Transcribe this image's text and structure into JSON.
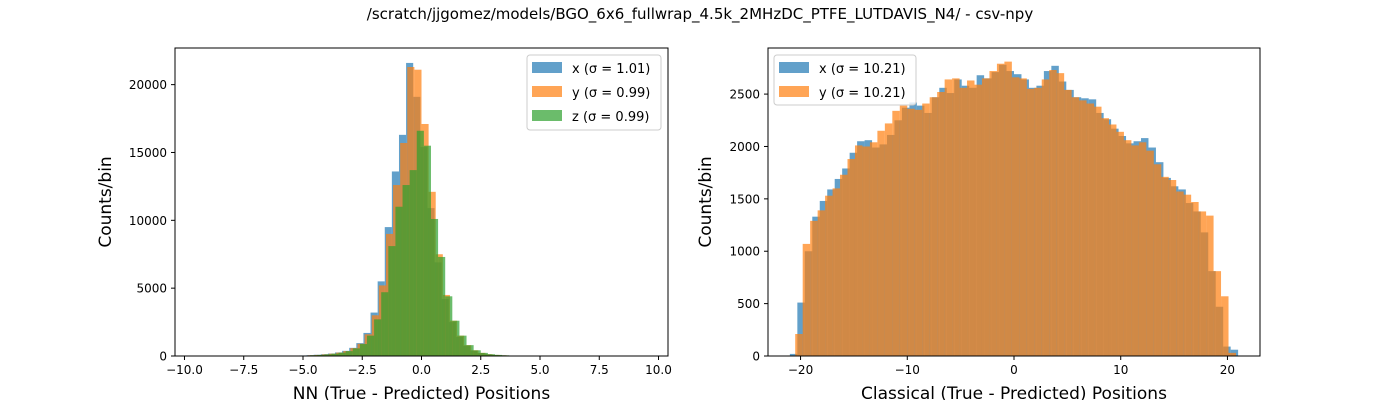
{
  "figure": {
    "suptitle": "/scratch/jjgomez/models/BGO_6x6_fullwrap_4.5k_2MHzDC_PTFE_LUTDAVIS_N4/ - csv-npy"
  },
  "colors": {
    "x": "#1f77b4",
    "y": "#ff7f0e",
    "z": "#2ca02c"
  },
  "chart_data": [
    {
      "type": "bar",
      "histogram": true,
      "xlabel": "NN (True - Predicted) Positions",
      "ylabel": "Counts/bin",
      "xlim": [
        -10.4,
        10.4
      ],
      "ylim": [
        0,
        22700
      ],
      "xticks": [
        -10.0,
        -7.5,
        -5.0,
        -2.5,
        0.0,
        2.5,
        5.0,
        7.5,
        10.0
      ],
      "xtick_labels": [
        "−10.0",
        "−7.5",
        "−5.0",
        "−2.5",
        "0.0",
        "2.5",
        "5.0",
        "7.5",
        "10.0"
      ],
      "yticks": [
        0,
        5000,
        10000,
        15000,
        20000
      ],
      "ytick_labels": [
        "0",
        "5000",
        "10000",
        "15000",
        "20000"
      ],
      "legend_position": "upper right",
      "alpha": 0.7,
      "series": [
        {
          "key": "x",
          "name": "x (σ = 1.01)",
          "bin_edges": [
            -5.75,
            -5.45,
            -5.15,
            -4.85,
            -4.55,
            -4.25,
            -3.95,
            -3.65,
            -3.35,
            -3.05,
            -2.75,
            -2.45,
            -2.15,
            -1.85,
            -1.55,
            -1.25,
            -0.95,
            -0.65,
            -0.35,
            -0.05,
            0.25,
            0.55,
            0.85,
            1.15,
            1.45,
            1.75,
            2.05,
            2.35,
            2.65,
            2.95,
            3.25,
            3.55,
            3.85,
            4.15,
            4.45,
            4.75,
            5.05,
            5.35
          ],
          "values": [
            20,
            30,
            40,
            60,
            90,
            130,
            180,
            260,
            380,
            600,
            950,
            1700,
            3200,
            5500,
            9500,
            13600,
            16300,
            21600,
            19100,
            15400,
            10900,
            6900,
            4200,
            2500,
            1400,
            750,
            400,
            220,
            130,
            80,
            50,
            30,
            20,
            15,
            10,
            5,
            3
          ]
        },
        {
          "key": "y",
          "name": "y (σ = 0.99)",
          "bin_edges": [
            -5.7,
            -5.4,
            -5.1,
            -4.8,
            -4.5,
            -4.2,
            -3.9,
            -3.6,
            -3.3,
            -3.0,
            -2.7,
            -2.4,
            -2.1,
            -1.8,
            -1.5,
            -1.2,
            -0.9,
            -0.6,
            -0.3,
            0.0,
            0.3,
            0.6,
            0.9,
            1.2,
            1.5,
            1.8,
            2.1,
            2.4,
            2.7,
            3.0,
            3.3,
            3.6,
            3.9,
            4.2,
            4.5,
            4.8,
            5.1,
            5.4
          ],
          "values": [
            15,
            25,
            35,
            55,
            80,
            120,
            170,
            250,
            360,
            580,
            900,
            1600,
            3000,
            5200,
            9000,
            12600,
            15700,
            21300,
            21100,
            17100,
            12100,
            7500,
            4500,
            2600,
            1500,
            800,
            420,
            230,
            130,
            80,
            50,
            30,
            20,
            15,
            10,
            5,
            3
          ]
        },
        {
          "key": "z",
          "name": "z (σ = 0.99)",
          "bin_edges": [
            -5.6,
            -5.3,
            -5.0,
            -4.7,
            -4.4,
            -4.1,
            -3.8,
            -3.5,
            -3.2,
            -2.9,
            -2.6,
            -2.3,
            -2.0,
            -1.7,
            -1.4,
            -1.1,
            -0.8,
            -0.5,
            -0.2,
            0.1,
            0.4,
            0.7,
            1.0,
            1.3,
            1.6,
            1.9,
            2.2,
            2.5,
            2.8,
            3.1,
            3.4,
            3.7,
            4.0,
            4.3,
            4.6,
            4.9,
            5.2,
            5.5
          ],
          "values": [
            15,
            25,
            35,
            55,
            80,
            120,
            170,
            250,
            360,
            560,
            880,
            1500,
            2700,
            4700,
            8100,
            11000,
            12600,
            13700,
            16600,
            15500,
            10100,
            7300,
            4400,
            2600,
            1500,
            800,
            420,
            230,
            130,
            80,
            50,
            30,
            20,
            15,
            10,
            5,
            3
          ]
        }
      ]
    },
    {
      "type": "bar",
      "histogram": true,
      "xlabel": "Classical (True - Predicted) Positions",
      "ylabel": "Counts/bin",
      "xlim": [
        -23.05,
        23.05
      ],
      "ylim": [
        0,
        2940
      ],
      "xticks": [
        -20,
        -10,
        0,
        10,
        20
      ],
      "xtick_labels": [
        "−20",
        "−10",
        "0",
        "10",
        "20"
      ],
      "yticks": [
        0,
        500,
        1000,
        1500,
        2000,
        2500
      ],
      "ytick_labels": [
        "0",
        "500",
        "1000",
        "1500",
        "2000",
        "2500"
      ],
      "legend_position": "upper left",
      "alpha": 0.7,
      "series": [
        {
          "key": "x",
          "name": "x (σ = 10.21)",
          "bin_edges": [
            -21.0,
            -20.3,
            -19.6,
            -18.9,
            -18.2,
            -17.5,
            -16.8,
            -16.1,
            -15.4,
            -14.7,
            -14.0,
            -13.3,
            -12.6,
            -11.9,
            -11.2,
            -10.5,
            -9.8,
            -9.1,
            -8.4,
            -7.7,
            -7.0,
            -6.3,
            -5.6,
            -4.9,
            -4.2,
            -3.5,
            -2.8,
            -2.1,
            -1.4,
            -0.7,
            0.0,
            0.7,
            1.4,
            2.1,
            2.8,
            3.5,
            4.2,
            4.9,
            5.6,
            6.3,
            7.0,
            7.7,
            8.4,
            9.1,
            9.8,
            10.5,
            11.2,
            11.9,
            12.6,
            13.3,
            14.0,
            14.7,
            15.4,
            16.1,
            16.8,
            17.5,
            18.2,
            18.9,
            19.6,
            20.3,
            21.0
          ],
          "values": [
            20,
            510,
            1000,
            1330,
            1480,
            1590,
            1690,
            1790,
            1940,
            2050,
            2060,
            1990,
            2020,
            2110,
            2250,
            2370,
            2420,
            2390,
            2320,
            2470,
            2560,
            2510,
            2640,
            2580,
            2560,
            2680,
            2650,
            2710,
            2780,
            2720,
            2690,
            2640,
            2560,
            2580,
            2720,
            2770,
            2620,
            2540,
            2470,
            2460,
            2450,
            2320,
            2260,
            2170,
            2100,
            2030,
            2050,
            2080,
            1990,
            1850,
            1700,
            1620,
            1590,
            1460,
            1380,
            1180,
            810,
            470,
            90,
            60
          ]
        },
        {
          "key": "y",
          "name": "y (σ = 10.21)",
          "bin_edges": [
            -21.2,
            -20.5,
            -19.8,
            -19.1,
            -18.4,
            -17.7,
            -17.0,
            -16.3,
            -15.6,
            -14.9,
            -14.2,
            -13.5,
            -12.8,
            -12.1,
            -11.4,
            -10.7,
            -10.0,
            -9.3,
            -8.6,
            -7.9,
            -7.2,
            -6.5,
            -5.8,
            -5.1,
            -4.4,
            -3.7,
            -3.0,
            -2.3,
            -1.6,
            -0.9,
            -0.2,
            0.5,
            1.2,
            1.9,
            2.6,
            3.3,
            4.0,
            4.7,
            5.4,
            6.1,
            6.8,
            7.5,
            8.2,
            8.9,
            9.6,
            10.3,
            11.0,
            11.7,
            12.4,
            13.1,
            13.8,
            14.5,
            15.2,
            15.9,
            16.6,
            17.3,
            18.0,
            18.7,
            19.4,
            20.1,
            20.8
          ],
          "values": [
            5,
            210,
            1070,
            1290,
            1390,
            1530,
            1600,
            1730,
            1880,
            2010,
            2000,
            2040,
            2150,
            2220,
            2340,
            2390,
            2360,
            2350,
            2410,
            2470,
            2520,
            2640,
            2650,
            2560,
            2630,
            2590,
            2650,
            2720,
            2790,
            2810,
            2660,
            2650,
            2550,
            2560,
            2640,
            2730,
            2700,
            2540,
            2470,
            2440,
            2410,
            2380,
            2270,
            2210,
            2140,
            2060,
            2010,
            2040,
            1960,
            1830,
            1710,
            1680,
            1570,
            1540,
            1470,
            1380,
            1340,
            810,
            570,
            30
          ]
        }
      ]
    }
  ]
}
